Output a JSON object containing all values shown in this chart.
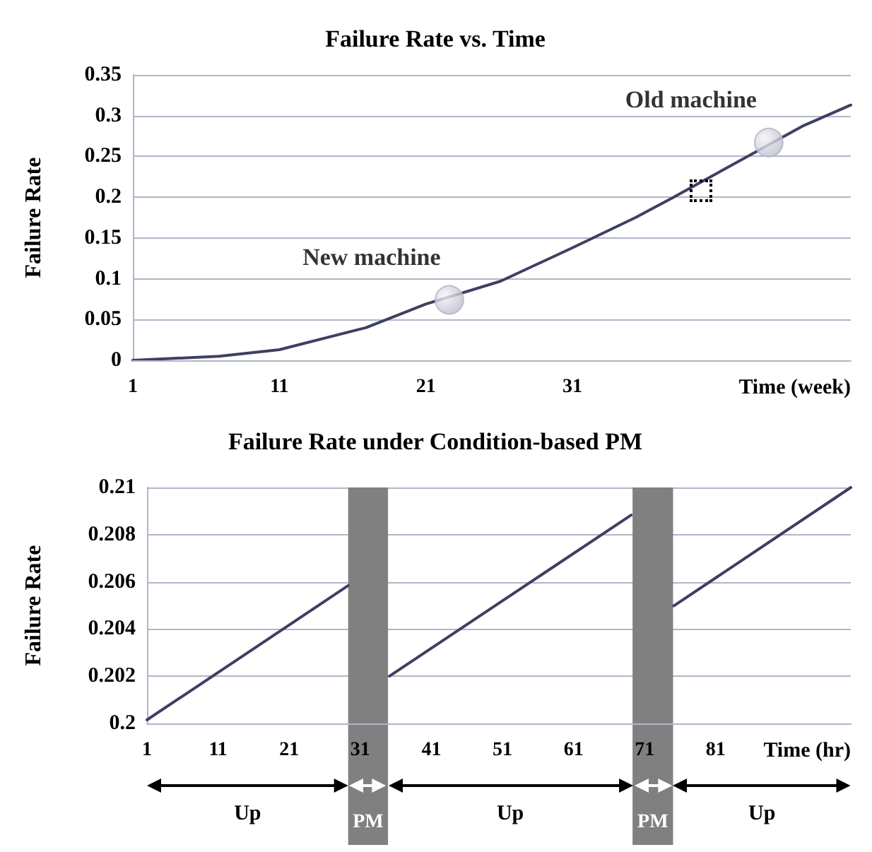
{
  "chart_data": [
    {
      "type": "line",
      "title": "Failure Rate vs. Time",
      "xlabel": "Time (week)",
      "ylabel": "Failure Rate",
      "series": [
        {
          "type": "line",
          "color": "#3f3f62",
          "x": [
            1,
            6.9,
            11,
            16.9,
            21,
            26.1,
            31,
            35.3,
            37.9,
            46.8,
            50
          ],
          "values": [
            0,
            0.005,
            0.013,
            0.04,
            0.069,
            0.097,
            0.138,
            0.175,
            0.2,
            0.288,
            0.313
          ]
        },
        {
          "type": "scatter",
          "color": "#b4b4c6",
          "marker": "circle",
          "x": [
            22.6,
            44.4
          ],
          "values": [
            0.074,
            0.267
          ]
        }
      ],
      "annotations": [
        {
          "text": "New machine",
          "x": 22.6,
          "y": 0.074
        },
        {
          "text": "Old machine",
          "x": 44.4,
          "y": 0.267
        }
      ],
      "xlim": [
        1,
        50
      ],
      "xticks": [
        1,
        11,
        21,
        31
      ],
      "ylim": [
        0,
        0.35
      ],
      "yticks": [
        0,
        0.05,
        0.1,
        0.15,
        0.2,
        0.25,
        0.3,
        0.35
      ],
      "grid": "y"
    },
    {
      "type": "line",
      "title": "Failure Rate under Condition-based PM",
      "xlabel": "Time (hr)",
      "ylabel": "Failure Rate",
      "series": [
        {
          "color": "#3f3f62",
          "x": [
            1,
            29.3
          ],
          "values": [
            0.20015,
            0.20584
          ]
        },
        {
          "color": "#3f3f62",
          "x": [
            35.1,
            69.1
          ],
          "values": [
            0.202,
            0.20883
          ]
        },
        {
          "color": "#3f3f62",
          "x": [
            75.1,
            100
          ],
          "values": [
            0.20498,
            0.21
          ]
        }
      ],
      "bands": [
        {
          "axis": "x",
          "from": 29.3,
          "to": 34.9,
          "label": "PM",
          "color": "#808080"
        },
        {
          "axis": "x",
          "from": 69.3,
          "to": 75,
          "label": "PM",
          "color": "#808080"
        }
      ],
      "annotations": [
        "Up",
        "Up",
        "Up"
      ],
      "xlim": [
        1,
        100
      ],
      "xticks": [
        1,
        11,
        21,
        31,
        41,
        51,
        61,
        71,
        81
      ],
      "ylim": [
        0.2,
        0.21
      ],
      "yticks": [
        0.2,
        0.202,
        0.204,
        0.206,
        0.208,
        0.21
      ],
      "grid": "y"
    }
  ]
}
